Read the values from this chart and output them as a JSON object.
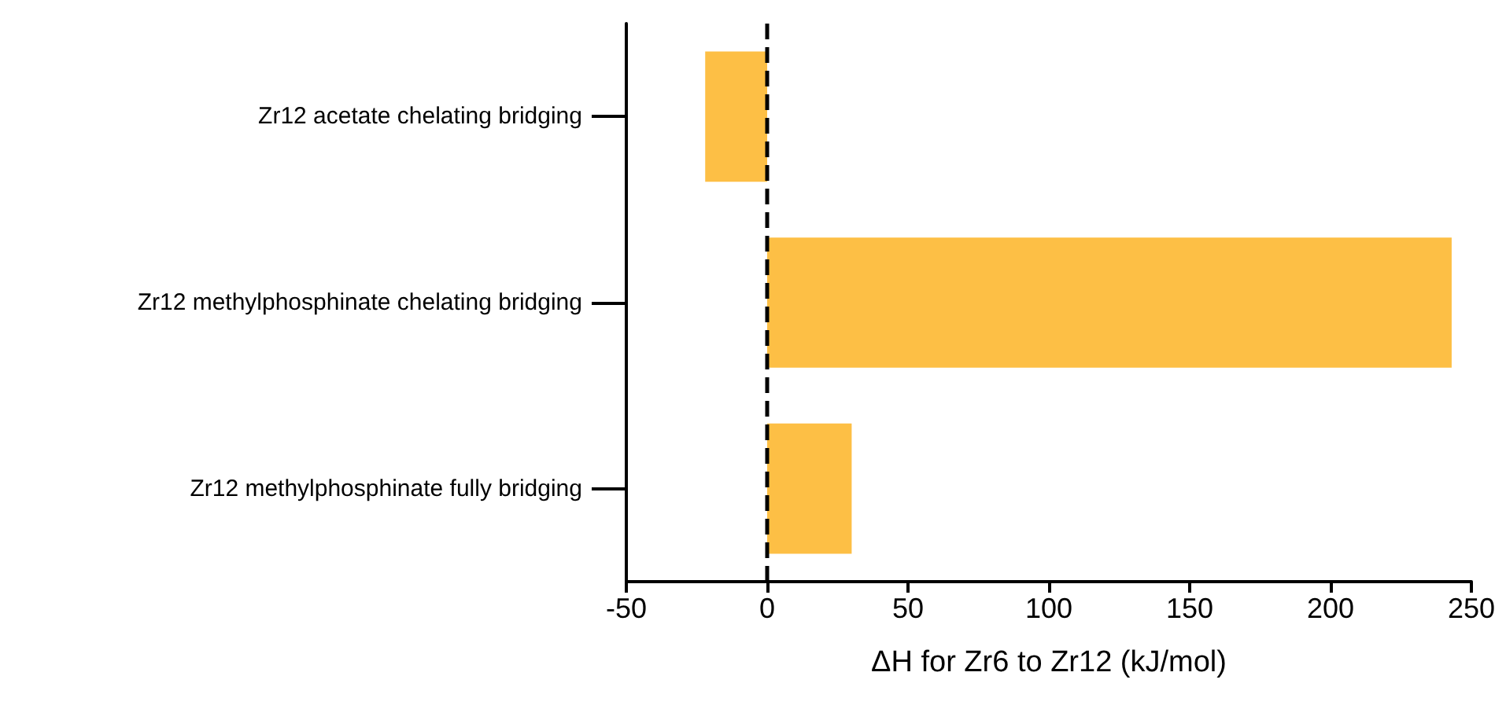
{
  "chart_data": {
    "type": "bar",
    "orientation": "horizontal",
    "categories": [
      "Zr12 acetate chelating bridging",
      "Zr12 methylphosphinate chelating bridging",
      "Zr12 methylphosphinate fully bridging"
    ],
    "values": [
      -22,
      243,
      30
    ],
    "color": "#fdbf45",
    "xlim": [
      -50,
      250
    ],
    "xticks": [
      -50,
      0,
      50,
      100,
      150,
      200,
      250
    ],
    "xlabel": "ΔH for Zr6 to Zr12 (kJ/mol)",
    "ref_lines": [
      {
        "axis": "x",
        "value": 0,
        "label": null,
        "color": "#000000",
        "line_style": "dashed"
      }
    ],
    "grid": false
  }
}
